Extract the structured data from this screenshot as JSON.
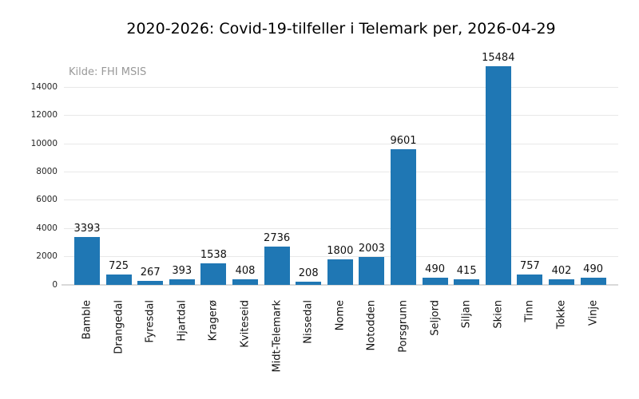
{
  "chart_data": {
    "type": "bar",
    "title": "2020-2026: Covid-19-tilfeller i Telemark per, 2026-04-29",
    "annotation": "Kilde: FHI MSIS",
    "categories": [
      "Bamble",
      "Drangedal",
      "Fyresdal",
      "Hjartdal",
      "Kragerø",
      "Kviteseid",
      "Midt-Telemark",
      "Nissedal",
      "Nome",
      "Notodden",
      "Porsgrunn",
      "Seljord",
      "Siljan",
      "Skien",
      "Tinn",
      "Tokke",
      "Vinje"
    ],
    "values": [
      3393,
      725,
      267,
      393,
      1538,
      408,
      2736,
      208,
      1800,
      2003,
      9601,
      490,
      415,
      15484,
      757,
      402,
      490
    ],
    "value_labels": true,
    "xlabel": "",
    "ylabel": "",
    "yticks": [
      0,
      2000,
      4000,
      6000,
      8000,
      10000,
      12000,
      14000
    ],
    "ylim": [
      0,
      16200
    ],
    "grid": "horizontal",
    "legend": "none",
    "bar_color": "#1f77b4",
    "grid_color": "#e8e8e8",
    "axis_line_color": "#d9d9d9",
    "annotation_color": "#999999"
  }
}
